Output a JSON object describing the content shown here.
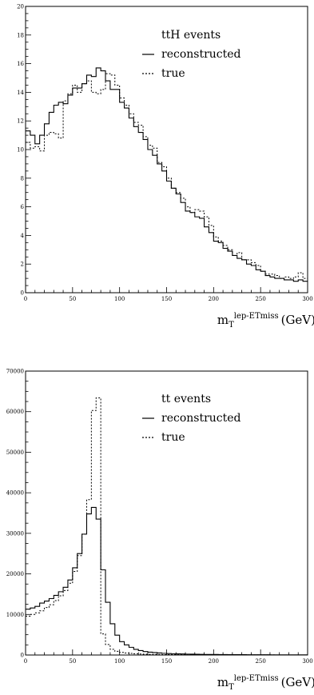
{
  "chart_data": [
    {
      "type": "line",
      "title": "",
      "xlabel": {
        "main": "m",
        "sub": "T",
        "sup": "lep-ETmiss",
        "unit": "(GeV)"
      },
      "ylabel": "",
      "xlim": [
        0,
        300
      ],
      "ylim": [
        0,
        20
      ],
      "xticks": [
        0,
        50,
        100,
        150,
        200,
        250,
        300
      ],
      "yticks": [
        0,
        2,
        4,
        6,
        8,
        10,
        12,
        14,
        16,
        18,
        20
      ],
      "grid": false,
      "legend": {
        "placement": "top-right",
        "title": "ttH events",
        "entries": [
          {
            "label": "reconstructed",
            "style": "solid"
          },
          {
            "label": "true",
            "style": "dotted"
          }
        ]
      },
      "bin_edges": [
        0,
        5,
        10,
        15,
        20,
        25,
        30,
        35,
        40,
        45,
        50,
        55,
        60,
        65,
        70,
        75,
        80,
        85,
        90,
        95,
        100,
        105,
        110,
        115,
        120,
        125,
        130,
        135,
        140,
        145,
        150,
        155,
        160,
        165,
        170,
        175,
        180,
        185,
        190,
        195,
        200,
        205,
        210,
        215,
        220,
        225,
        230,
        235,
        240,
        245,
        250,
        255,
        260,
        265,
        270,
        275,
        280,
        285,
        290,
        295,
        300
      ],
      "series": [
        {
          "name": "reconstructed",
          "style": "solid",
          "values": [
            11.3,
            11.0,
            10.4,
            11.0,
            11.8,
            12.6,
            13.1,
            13.3,
            13.2,
            13.8,
            14.3,
            14.3,
            14.6,
            15.2,
            15.1,
            15.7,
            15.5,
            14.8,
            14.2,
            14.2,
            13.3,
            12.9,
            12.2,
            11.6,
            11.2,
            10.7,
            10.0,
            9.6,
            9.0,
            8.5,
            7.8,
            7.3,
            6.9,
            6.3,
            5.7,
            5.6,
            5.3,
            5.2,
            4.6,
            4.2,
            3.6,
            3.5,
            3.1,
            2.9,
            2.6,
            2.4,
            2.3,
            2.0,
            1.9,
            1.6,
            1.5,
            1.2,
            1.1,
            1.0,
            1.0,
            0.9,
            0.9,
            0.8,
            0.9,
            0.8
          ]
        },
        {
          "name": "true",
          "style": "dotted",
          "values": [
            10.5,
            10.1,
            10.2,
            9.9,
            11.0,
            11.2,
            11.1,
            10.8,
            13.4,
            13.9,
            14.5,
            14.0,
            14.6,
            14.8,
            14.0,
            13.9,
            14.2,
            15.3,
            15.2,
            14.5,
            13.6,
            13.1,
            12.5,
            11.9,
            11.7,
            10.9,
            10.3,
            10.1,
            9.1,
            8.8,
            8.0,
            7.3,
            7.0,
            6.6,
            6.0,
            5.6,
            5.8,
            5.7,
            5.3,
            4.7,
            3.9,
            3.6,
            3.3,
            3.0,
            2.6,
            2.8,
            2.3,
            2.3,
            2.1,
            1.9,
            1.5,
            1.3,
            1.3,
            1.2,
            1.0,
            1.1,
            1.0,
            1.1,
            1.4,
            1.0
          ]
        }
      ]
    },
    {
      "type": "line",
      "title": "",
      "xlabel": {
        "main": "m",
        "sub": "T",
        "sup": "lep-ETmiss",
        "unit": "(GeV)"
      },
      "ylabel": "",
      "xlim": [
        0,
        300
      ],
      "ylim": [
        0,
        70000
      ],
      "xticks": [
        0,
        50,
        100,
        150,
        200,
        250,
        300
      ],
      "yticks": [
        0,
        10000,
        20000,
        30000,
        40000,
        50000,
        60000,
        70000
      ],
      "grid": false,
      "legend": {
        "placement": "top-right",
        "title": "tt events",
        "entries": [
          {
            "label": "reconstructed",
            "style": "solid"
          },
          {
            "label": "true",
            "style": "dotted"
          }
        ]
      },
      "bin_edges": [
        0,
        5,
        10,
        15,
        20,
        25,
        30,
        35,
        40,
        45,
        50,
        55,
        60,
        65,
        70,
        75,
        80,
        85,
        90,
        95,
        100,
        105,
        110,
        115,
        120,
        125,
        130,
        135,
        140,
        145,
        150,
        155,
        160,
        165,
        170,
        175,
        180,
        185,
        190,
        195,
        200,
        205,
        210,
        215,
        220,
        225,
        230,
        235,
        240,
        245,
        250,
        255,
        260,
        265,
        270,
        275,
        280,
        285,
        290,
        295,
        300
      ],
      "series": [
        {
          "name": "reconstructed",
          "style": "solid",
          "values": [
            11300,
            11600,
            12000,
            12800,
            13300,
            13900,
            14700,
            15600,
            16700,
            18500,
            21500,
            25000,
            29800,
            34800,
            36400,
            33500,
            21000,
            13000,
            7700,
            4900,
            3300,
            2500,
            1900,
            1400,
            1100,
            850,
            700,
            600,
            500,
            420,
            360,
            320,
            280,
            250,
            220,
            200,
            180,
            160,
            150,
            140,
            130,
            120,
            110,
            100,
            90,
            85,
            80,
            75,
            70,
            65,
            60,
            55,
            50,
            45,
            42,
            40,
            38,
            35,
            32,
            30
          ]
        },
        {
          "name": "true",
          "style": "dotted",
          "values": [
            9600,
            10000,
            10400,
            10900,
            11700,
            12400,
            13400,
            14600,
            15900,
            17700,
            20600,
            24500,
            29800,
            38300,
            60300,
            63400,
            5200,
            2600,
            1400,
            900,
            650,
            500,
            400,
            300,
            250,
            200,
            170,
            150,
            130,
            110,
            100,
            90,
            80,
            70,
            60,
            55,
            50,
            45,
            40,
            38,
            35,
            32,
            30,
            28,
            26,
            24,
            22,
            20,
            18,
            16,
            15,
            14,
            13,
            12,
            11,
            10,
            9,
            8,
            7,
            6
          ]
        }
      ]
    }
  ]
}
